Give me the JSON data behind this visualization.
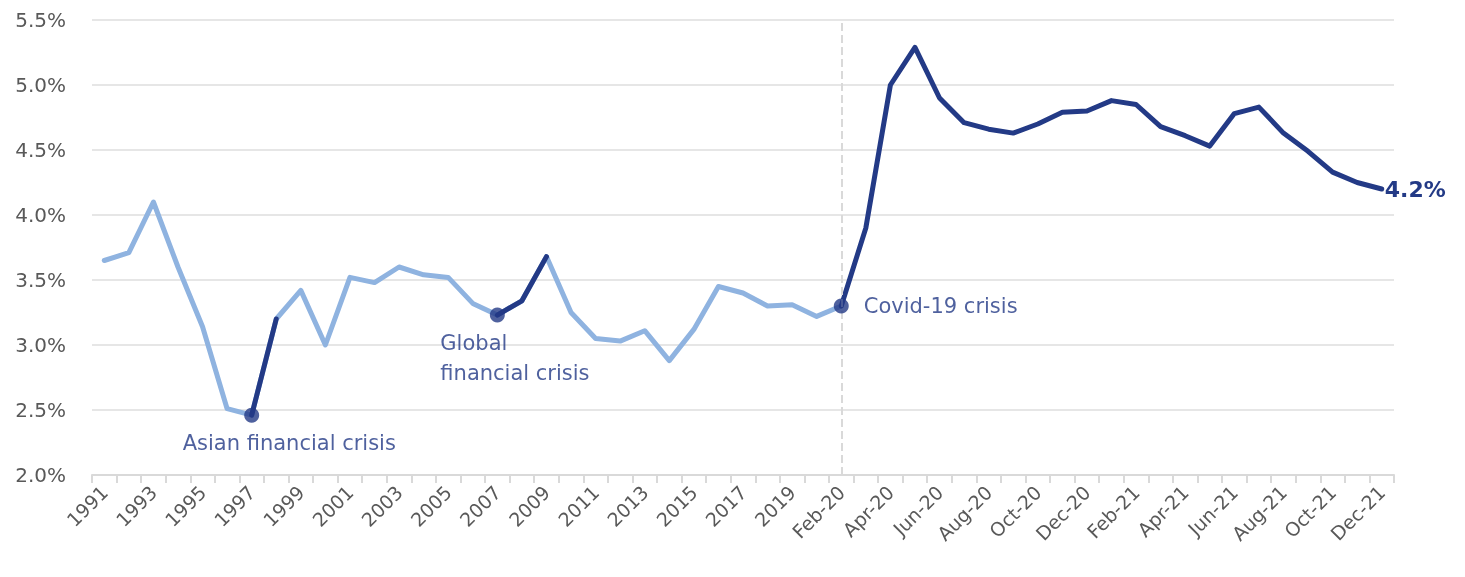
{
  "chart_data": {
    "type": "line",
    "categories": [
      "1991",
      null,
      "1993",
      null,
      "1995",
      null,
      "1997",
      null,
      "1999",
      null,
      "2001",
      null,
      "2003",
      null,
      "2005",
      null,
      "2007",
      null,
      "2009",
      null,
      "2011",
      null,
      "2013",
      null,
      "2015",
      null,
      "2017",
      null,
      "2019",
      null,
      "Feb-20",
      null,
      "Apr-20",
      null,
      "Jun-20",
      null,
      "Aug-20",
      null,
      "Oct-20",
      null,
      "Dec-20",
      null,
      "Feb-21",
      null,
      "Apr-21",
      null,
      "Jun-21",
      null,
      "Aug-21",
      null,
      "Oct-21",
      null,
      "Dec-21"
    ],
    "series": [
      {
        "color": "#8fb3e0",
        "values": [
          3.65,
          3.71,
          4.1,
          3.6,
          3.14,
          2.51,
          2.46,
          3.2,
          3.42,
          3.0,
          3.52,
          3.48,
          3.6,
          3.54,
          3.52,
          3.32,
          3.23,
          3.34,
          3.68,
          3.25,
          3.05,
          3.03,
          3.11,
          2.88,
          3.12,
          3.45,
          3.4,
          3.3,
          3.31,
          3.22,
          3.3,
          null,
          null,
          null,
          null,
          null,
          null,
          null,
          null,
          null,
          null,
          null,
          null,
          null,
          null,
          null,
          null,
          null,
          null,
          null,
          null,
          null,
          null
        ]
      },
      {
        "color": "#233a86",
        "values": [
          null,
          null,
          null,
          null,
          null,
          null,
          2.46,
          3.2,
          null,
          null,
          null,
          null,
          null,
          null,
          null,
          null,
          3.23,
          3.34,
          3.68,
          null,
          null,
          null,
          null,
          null,
          null,
          null,
          null,
          null,
          null,
          null,
          3.3,
          3.9,
          5.0,
          5.29,
          4.9,
          4.71,
          4.66,
          4.63,
          4.7,
          4.79,
          4.8,
          4.88,
          4.85,
          4.68,
          4.61,
          4.53,
          4.78,
          4.83,
          4.63,
          4.49,
          4.33,
          4.25,
          4.2
        ],
        "value_labels": [
          null,
          null,
          null,
          null,
          null,
          null,
          null,
          null,
          null,
          null,
          null,
          null,
          null,
          null,
          null,
          null,
          null,
          null,
          null,
          null,
          null,
          null,
          null,
          null,
          null,
          null,
          null,
          null,
          null,
          null,
          null,
          null,
          null,
          null,
          null,
          null,
          null,
          null,
          null,
          null,
          null,
          null,
          null,
          null,
          null,
          null,
          null,
          null,
          null,
          null,
          null,
          null,
          "4.2%"
        ]
      }
    ],
    "ylim": [
      2.0,
      5.5
    ],
    "yticks": [
      {
        "value": 2.0,
        "label": "2.0%"
      },
      {
        "value": 2.5,
        "label": "2.5%"
      },
      {
        "value": 3.0,
        "label": "3.0%"
      },
      {
        "value": 3.5,
        "label": "3.5%"
      },
      {
        "value": 4.0,
        "label": "4.0%"
      },
      {
        "value": 4.5,
        "label": "4.5%"
      },
      {
        "value": 5.0,
        "label": "5.0%"
      },
      {
        "value": 5.5,
        "label": "5.5%"
      }
    ],
    "grid": "y",
    "marker": "none",
    "line_style": "solid",
    "ref_lines": [
      {
        "axis": "x",
        "value": "Feb-20",
        "color": "#d9d9d9",
        "line_style": "dashed"
      }
    ],
    "annotations": [
      {
        "text": "Asian financial crisis",
        "x": "1997",
        "y": 2.46
      },
      {
        "text": "Global financial crisis",
        "x": "2007",
        "y": 3.23
      },
      {
        "text": "Covid-19 crisis",
        "x": "Feb-20",
        "y": 3.3
      }
    ]
  }
}
